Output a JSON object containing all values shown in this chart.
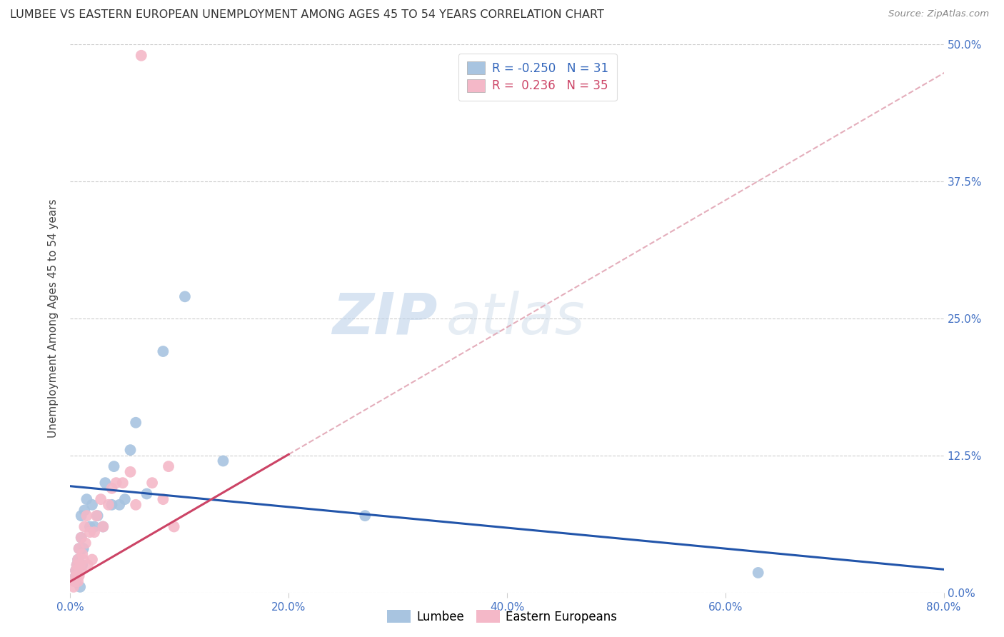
{
  "title": "LUMBEE VS EASTERN EUROPEAN UNEMPLOYMENT AMONG AGES 45 TO 54 YEARS CORRELATION CHART",
  "source": "Source: ZipAtlas.com",
  "ylabel": "Unemployment Among Ages 45 to 54 years",
  "xlim": [
    0.0,
    0.8
  ],
  "ylim": [
    0.0,
    0.5
  ],
  "xtick_labels": [
    "0.0%",
    "20.0%",
    "40.0%",
    "60.0%",
    "80.0%"
  ],
  "xtick_vals": [
    0.0,
    0.2,
    0.4,
    0.6,
    0.8
  ],
  "ytick_labels": [
    "0.0%",
    "12.5%",
    "25.0%",
    "37.5%",
    "50.0%"
  ],
  "ytick_vals": [
    0.0,
    0.125,
    0.25,
    0.375,
    0.5
  ],
  "lumbee_R": -0.25,
  "lumbee_N": 31,
  "eastern_R": 0.236,
  "eastern_N": 35,
  "watermark_zip": "ZIP",
  "watermark_atlas": "atlas",
  "lumbee_color": "#a8c4e0",
  "eastern_color": "#f4b8c8",
  "lumbee_line_color": "#2255aa",
  "eastern_solid_color": "#cc4466",
  "eastern_dashed_color": "#e0a0b0",
  "lumbee_intercept": 0.097,
  "lumbee_slope": -0.095,
  "eastern_intercept": 0.01,
  "eastern_slope": 0.58,
  "lumbee_points_x": [
    0.005,
    0.005,
    0.005,
    0.006,
    0.007,
    0.008,
    0.009,
    0.01,
    0.01,
    0.011,
    0.012,
    0.013,
    0.015,
    0.018,
    0.02,
    0.022,
    0.025,
    0.03,
    0.032,
    0.038,
    0.04,
    0.045,
    0.05,
    0.055,
    0.06,
    0.07,
    0.085,
    0.105,
    0.14,
    0.27,
    0.63
  ],
  "lumbee_points_y": [
    0.01,
    0.015,
    0.02,
    0.025,
    0.03,
    0.04,
    0.005,
    0.05,
    0.07,
    0.025,
    0.04,
    0.075,
    0.085,
    0.06,
    0.08,
    0.06,
    0.07,
    0.06,
    0.1,
    0.08,
    0.115,
    0.08,
    0.085,
    0.13,
    0.155,
    0.09,
    0.22,
    0.27,
    0.12,
    0.07,
    0.018
  ],
  "eastern_points_x": [
    0.003,
    0.004,
    0.005,
    0.005,
    0.006,
    0.007,
    0.007,
    0.008,
    0.008,
    0.009,
    0.01,
    0.01,
    0.011,
    0.012,
    0.013,
    0.014,
    0.015,
    0.016,
    0.018,
    0.02,
    0.022,
    0.024,
    0.028,
    0.03,
    0.035,
    0.038,
    0.042,
    0.048,
    0.055,
    0.06,
    0.065,
    0.075,
    0.085,
    0.09,
    0.095
  ],
  "eastern_points_y": [
    0.005,
    0.01,
    0.015,
    0.02,
    0.025,
    0.01,
    0.03,
    0.015,
    0.04,
    0.025,
    0.02,
    0.05,
    0.035,
    0.03,
    0.06,
    0.045,
    0.07,
    0.025,
    0.055,
    0.03,
    0.055,
    0.07,
    0.085,
    0.06,
    0.08,
    0.095,
    0.1,
    0.1,
    0.11,
    0.08,
    0.49,
    0.1,
    0.085,
    0.115,
    0.06
  ]
}
